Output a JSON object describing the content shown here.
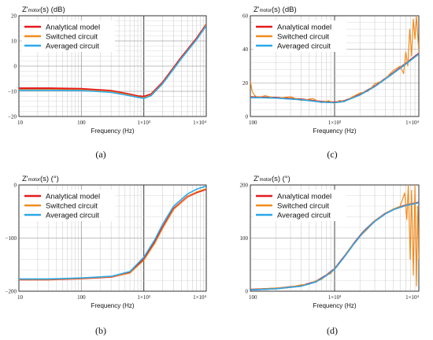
{
  "colors": {
    "analytical": "#e41a1c",
    "switched": "#f28c1e",
    "averaged": "#29a9e8",
    "grid": "#cfcfcf",
    "axis": "#333333"
  },
  "chart_data": [
    {
      "type": "line",
      "panel_label": "(a)",
      "title_main": "Z'",
      "title_sub": "motor",
      "title_rest": "(s) (dB)",
      "xlabel": "Frequency (Hz)",
      "xscale": "log",
      "xlim": [
        10,
        10000
      ],
      "ylim": [
        -20,
        20
      ],
      "yticks": [
        -20,
        -10,
        0,
        10,
        20
      ],
      "ytick_labels": [
        "−20",
        "−10",
        "0",
        "10",
        "20"
      ],
      "xticks": [
        10,
        100,
        1000,
        10000
      ],
      "xtick_labels": [
        "10",
        "100",
        "1×10³",
        "1×10⁴"
      ],
      "legend": [
        "Analytical model",
        "Switched circuit",
        "Averaged circuit"
      ],
      "legend_position": "top-left",
      "grid": true,
      "series": [
        {
          "name": "Analytical model",
          "x": [
            10,
            30,
            100,
            300,
            500,
            800,
            1000,
            1300,
            2000,
            4000,
            7000,
            10000
          ],
          "y": [
            -8.8,
            -8.8,
            -9.0,
            -9.8,
            -10.8,
            -11.9,
            -12.1,
            -11.2,
            -6.5,
            3.5,
            11.0,
            16.5
          ]
        },
        {
          "name": "Switched circuit",
          "x": [
            10,
            30,
            100,
            300,
            500,
            800,
            1000,
            1300,
            2000,
            4000,
            7000,
            10000
          ],
          "y": [
            -9.3,
            -9.3,
            -9.4,
            -10.1,
            -11.1,
            -12.2,
            -12.5,
            -11.5,
            -6.8,
            3.2,
            10.7,
            16.3
          ]
        },
        {
          "name": "Averaged circuit",
          "x": [
            10,
            30,
            100,
            300,
            500,
            800,
            1000,
            1300,
            2000,
            4000,
            7000,
            10000
          ],
          "y": [
            -9.6,
            -9.6,
            -9.7,
            -10.4,
            -11.4,
            -12.4,
            -12.8,
            -11.8,
            -7.0,
            3.0,
            10.5,
            16.0
          ]
        }
      ]
    },
    {
      "type": "line",
      "panel_label": "(b)",
      "title_main": "Z'",
      "title_sub": "motor",
      "title_rest": "(s) (°)",
      "xlabel": "Frequency (Hz)",
      "xscale": "log",
      "xlim": [
        10,
        10000
      ],
      "ylim": [
        -200,
        0
      ],
      "yticks": [
        -200,
        -100,
        0
      ],
      "ytick_labels": [
        "−200",
        "−100",
        "0"
      ],
      "xticks": [
        10,
        100,
        1000,
        10000
      ],
      "xtick_labels": [
        "10",
        "100",
        "1×10³",
        "1×10⁴"
      ],
      "legend": [
        "Analytical model",
        "Switched circuit",
        "Averaged circuit"
      ],
      "legend_position": "top-left",
      "grid": true,
      "series": [
        {
          "name": "Analytical model",
          "x": [
            10,
            30,
            100,
            300,
            600,
            1000,
            1500,
            2000,
            3000,
            5000,
            7000,
            10000
          ],
          "y": [
            -178,
            -178,
            -176,
            -173,
            -165,
            -140,
            -108,
            -80,
            -45,
            -22,
            -14,
            -8
          ]
        },
        {
          "name": "Switched circuit",
          "x": [
            10,
            30,
            100,
            300,
            600,
            1000,
            1500,
            2000,
            3000,
            5000,
            7000,
            10000
          ],
          "y": [
            -178,
            -178,
            -176,
            -173,
            -166,
            -142,
            -110,
            -82,
            -46,
            -22,
            -13,
            -7
          ]
        },
        {
          "name": "Averaged circuit",
          "x": [
            10,
            30,
            100,
            300,
            600,
            1000,
            1500,
            2000,
            3000,
            5000,
            7000,
            10000
          ],
          "y": [
            -177,
            -177,
            -175,
            -172,
            -163,
            -136,
            -103,
            -74,
            -40,
            -17,
            -8,
            -2
          ]
        }
      ]
    },
    {
      "type": "line",
      "panel_label": "(c)",
      "title_main": "Z'",
      "title_sub": "motor",
      "title_rest": "(s) (dB)",
      "xlabel": "Frequency (Hz)",
      "xscale": "log",
      "xlim": [
        100,
        10000
      ],
      "ylim": [
        0,
        60
      ],
      "yticks": [
        0,
        20,
        40,
        60
      ],
      "ytick_labels": [
        "0",
        "20",
        "40",
        "60"
      ],
      "xticks": [
        100,
        1000,
        10000
      ],
      "xtick_labels": [
        "100",
        "1×10³",
        "1×10⁴"
      ],
      "legend": [
        "Analytical model",
        "Switched circuit",
        "Averaged circuit"
      ],
      "legend_position": "top-left",
      "grid": true,
      "series": [
        {
          "name": "Analytical model",
          "x": [
            100,
            200,
            400,
            700,
            1000,
            1300,
            2000,
            3000,
            5000,
            7000,
            10000
          ],
          "y": [
            11.5,
            11.2,
            10.2,
            8.8,
            8.4,
            9.2,
            13.0,
            18.0,
            26.0,
            31.5,
            37.5
          ]
        },
        {
          "name": "Switched circuit",
          "x": [
            100,
            105,
            112,
            125,
            150,
            200,
            300,
            400,
            550,
            700,
            850,
            1000,
            1150,
            1300,
            1600,
            2000,
            2500,
            3000,
            3800,
            5000,
            6000,
            6600,
            7000,
            7400,
            7800,
            8200,
            8600,
            9000,
            9400,
            10000
          ],
          "y": [
            21,
            15,
            12.5,
            11.3,
            12.4,
            10.8,
            11.8,
            9.5,
            10.7,
            8.2,
            9.4,
            7.8,
            9.6,
            8.8,
            11.5,
            14.0,
            15.0,
            19.5,
            21.5,
            27.5,
            30.0,
            25.5,
            38.5,
            30.0,
            52.0,
            36.0,
            58.0,
            46.0,
            60.0,
            38.0
          ]
        },
        {
          "name": "Averaged circuit",
          "x": [
            100,
            200,
            400,
            700,
            1000,
            1300,
            2000,
            3000,
            5000,
            7000,
            10000
          ],
          "y": [
            11.3,
            11.0,
            10.0,
            8.6,
            8.2,
            9.0,
            12.8,
            17.8,
            25.8,
            31.2,
            37.2
          ]
        }
      ]
    },
    {
      "type": "line",
      "panel_label": "(d)",
      "title_main": "Z'",
      "title_sub": "motor",
      "title_rest": "(s) (°)",
      "xlabel": "Frequency (Hz)",
      "xscale": "log",
      "xlim": [
        100,
        10000
      ],
      "ylim": [
        0,
        200
      ],
      "yticks": [
        0,
        100,
        200
      ],
      "ytick_labels": [
        "0",
        "100",
        "200"
      ],
      "xticks": [
        100,
        1000,
        10000
      ],
      "xtick_labels": [
        "100",
        "1×10³",
        "1×10⁴"
      ],
      "legend": [
        "Analytical model",
        "Switched circuit",
        "Averaged circuit"
      ],
      "legend_position": "top-left",
      "grid": true,
      "series": [
        {
          "name": "Analytical model",
          "x": [
            100,
            200,
            400,
            600,
            800,
            1000,
            1300,
            1700,
            2200,
            3000,
            4000,
            5000,
            7000,
            10000
          ],
          "y": [
            3,
            5,
            10,
            18,
            30,
            42,
            65,
            90,
            112,
            132,
            146,
            154,
            162,
            167
          ]
        },
        {
          "name": "Switched circuit",
          "x": [
            100,
            200,
            300,
            400,
            500,
            600,
            700,
            800,
            900,
            1000,
            1200,
            1500,
            2000,
            2500,
            3000,
            4000,
            5000,
            6000,
            6800,
            7200,
            7500,
            7900,
            8200,
            8600,
            9000,
            9400,
            9700,
            10000
          ],
          "y": [
            3,
            6,
            8,
            12,
            13,
            20,
            22,
            31,
            33,
            43,
            57,
            80,
            103,
            118,
            133,
            146,
            155,
            160,
            185,
            135,
            200,
            60,
            190,
            30,
            200,
            10,
            160,
            60
          ]
        },
        {
          "name": "Averaged circuit",
          "x": [
            100,
            200,
            400,
            600,
            800,
            1000,
            1300,
            1700,
            2200,
            3000,
            4000,
            5000,
            7000,
            10000
          ],
          "y": [
            2.5,
            4.5,
            9.5,
            17.5,
            29.5,
            41.5,
            64.5,
            89.5,
            111.5,
            131.5,
            145.5,
            153.5,
            161.5,
            166.5
          ]
        }
      ]
    }
  ]
}
